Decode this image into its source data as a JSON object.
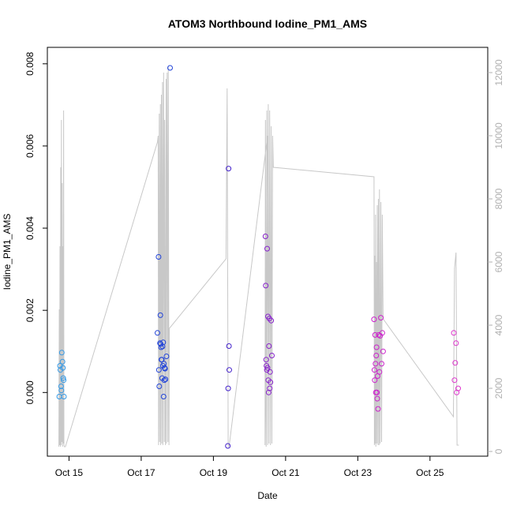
{
  "chart_data": {
    "type": "scatter",
    "title": "ATOM3 Northbound Iodine_PM1_AMS",
    "xlabel": "Date",
    "ylabel": "Iodine_PM1_AMS",
    "x_unit": "day of October (fractional)",
    "xlim": [
      14.4,
      26.6
    ],
    "ylim": [
      -0.00155,
      0.0084
    ],
    "y2lim": [
      -150,
      12800
    ],
    "x_ticks": [
      {
        "value": 15,
        "label": "Oct 15"
      },
      {
        "value": 17,
        "label": "Oct 17"
      },
      {
        "value": 19,
        "label": "Oct 19"
      },
      {
        "value": 21,
        "label": "Oct 21"
      },
      {
        "value": 23,
        "label": "Oct 23"
      },
      {
        "value": 25,
        "label": "Oct 25"
      }
    ],
    "y_ticks": [
      {
        "value": 0,
        "label": "0.000"
      },
      {
        "value": 0.002,
        "label": "0.002"
      },
      {
        "value": 0.004,
        "label": "0.004"
      },
      {
        "value": 0.006,
        "label": "0.006"
      },
      {
        "value": 0.008,
        "label": "0.008"
      }
    ],
    "y2_ticks": [
      {
        "value": 0,
        "label": "0"
      },
      {
        "value": 2000,
        "label": "2000"
      },
      {
        "value": 4000,
        "label": "4000"
      },
      {
        "value": 6000,
        "label": "6000"
      },
      {
        "value": 8000,
        "label": "8000"
      },
      {
        "value": 10000,
        "label": "10000"
      },
      {
        "value": 12000,
        "label": "12000"
      }
    ],
    "colors": {
      "altitude_line": "#c8c8c8",
      "axis": "#000000",
      "right_axis": "#b0b0b0"
    },
    "altitude_series": {
      "name": "altitude",
      "x": [
        14.72,
        14.73,
        14.74,
        14.75,
        14.76,
        14.77,
        14.78,
        14.79,
        14.8,
        14.81,
        14.82,
        14.83,
        14.84,
        14.85,
        14.86,
        14.87,
        14.88,
        14.89,
        14.9,
        17.45,
        17.47,
        17.48,
        17.5,
        17.51,
        17.53,
        17.54,
        17.56,
        17.57,
        17.59,
        17.6,
        17.62,
        17.64,
        17.65,
        17.67,
        17.69,
        17.7,
        17.72,
        17.74,
        17.75,
        17.77,
        17.78,
        19.35,
        19.38,
        19.41,
        19.42,
        19.44,
        20.5,
        20.43,
        20.44,
        20.46,
        20.48,
        20.5,
        20.52,
        20.54,
        20.56,
        20.58,
        20.6,
        20.62,
        20.64,
        20.66,
        23.45,
        23.46,
        23.47,
        23.48,
        23.49,
        23.5,
        23.52,
        23.53,
        23.54,
        23.56,
        23.57,
        23.59,
        23.6,
        23.62,
        23.64,
        23.66,
        23.68,
        23.7,
        25.65,
        25.68,
        25.72,
        25.75,
        25.78,
        25.8
      ],
      "y": [
        150,
        4500,
        200,
        6500,
        150,
        9000,
        200,
        10500,
        300,
        8500,
        150,
        6500,
        250,
        10800,
        200,
        150,
        150,
        150,
        150,
        9800,
        10000,
        200,
        10700,
        300,
        11000,
        200,
        11300,
        250,
        11700,
        200,
        12000,
        300,
        10500,
        200,
        11800,
        250,
        12000,
        300,
        12200,
        200,
        3900,
        6100,
        11500,
        200,
        150,
        200,
        10000,
        200,
        10500,
        150,
        10800,
        200,
        11000,
        250,
        10800,
        200,
        10300,
        250,
        10000,
        9000,
        8700,
        200,
        6200,
        250,
        7500,
        150,
        6000,
        250,
        7800,
        200,
        8000,
        200,
        8300,
        250,
        7900,
        300,
        7500,
        4200,
        1100,
        5800,
        6300,
        200,
        200,
        200
      ]
    },
    "points": [
      {
        "x": 14.73,
        "y": -0.0001,
        "color": "#3399e6"
      },
      {
        "x": 14.75,
        "y": 0.00065,
        "color": "#3399e6"
      },
      {
        "x": 14.76,
        "y": 0.00055,
        "color": "#3399e6"
      },
      {
        "x": 14.78,
        "y": 0.00015,
        "color": "#3399e6"
      },
      {
        "x": 14.79,
        "y": 5e-05,
        "color": "#3399e6"
      },
      {
        "x": 14.8,
        "y": 0.00097,
        "color": "#3399e6"
      },
      {
        "x": 14.82,
        "y": 0.00075,
        "color": "#3399e6"
      },
      {
        "x": 14.83,
        "y": 0.0006,
        "color": "#3399e6"
      },
      {
        "x": 14.84,
        "y": 0.00035,
        "color": "#3399e6"
      },
      {
        "x": 14.85,
        "y": 0.0003,
        "color": "#3399e6"
      },
      {
        "x": 14.86,
        "y": -0.0001,
        "color": "#3399e6"
      },
      {
        "x": 17.45,
        "y": 0.00145,
        "color": "#2244d8"
      },
      {
        "x": 17.48,
        "y": 0.0033,
        "color": "#2244d8"
      },
      {
        "x": 17.49,
        "y": 0.00055,
        "color": "#2244d8"
      },
      {
        "x": 17.5,
        "y": 0.00015,
        "color": "#2244d8"
      },
      {
        "x": 17.52,
        "y": 0.0012,
        "color": "#2244d8"
      },
      {
        "x": 17.53,
        "y": 0.00188,
        "color": "#2244d8"
      },
      {
        "x": 17.54,
        "y": 0.00118,
        "color": "#2244d8"
      },
      {
        "x": 17.55,
        "y": 0.0011,
        "color": "#2244d8"
      },
      {
        "x": 17.56,
        "y": 0.0008,
        "color": "#2244d8"
      },
      {
        "x": 17.57,
        "y": 0.0008,
        "color": "#2244d8"
      },
      {
        "x": 17.58,
        "y": 0.00035,
        "color": "#2244d8"
      },
      {
        "x": 17.59,
        "y": 0.00112,
        "color": "#2244d8"
      },
      {
        "x": 17.6,
        "y": 0.00065,
        "color": "#2244d8"
      },
      {
        "x": 17.61,
        "y": 0.00122,
        "color": "#2244d8"
      },
      {
        "x": 17.62,
        "y": -0.0001,
        "color": "#2244d8"
      },
      {
        "x": 17.63,
        "y": 0.0007,
        "color": "#2244d8"
      },
      {
        "x": 17.64,
        "y": 0.0003,
        "color": "#2244d8"
      },
      {
        "x": 17.65,
        "y": 0.0006,
        "color": "#2244d8"
      },
      {
        "x": 17.66,
        "y": 0.00058,
        "color": "#2244d8"
      },
      {
        "x": 17.67,
        "y": 0.00032,
        "color": "#2244d8"
      },
      {
        "x": 17.7,
        "y": 0.00088,
        "color": "#2244d8"
      },
      {
        "x": 17.8,
        "y": 0.0079,
        "color": "#2244d8"
      },
      {
        "x": 19.4,
        "y": -0.0013,
        "color": "#4422cc"
      },
      {
        "x": 19.41,
        "y": 0.0001,
        "color": "#4422cc"
      },
      {
        "x": 19.42,
        "y": 0.00545,
        "color": "#4422cc"
      },
      {
        "x": 19.43,
        "y": 0.00113,
        "color": "#4422cc"
      },
      {
        "x": 19.44,
        "y": 0.00055,
        "color": "#4422cc"
      },
      {
        "x": 20.44,
        "y": 0.0038,
        "color": "#8822cc"
      },
      {
        "x": 20.45,
        "y": 0.0026,
        "color": "#8822cc"
      },
      {
        "x": 20.46,
        "y": 0.0008,
        "color": "#8822cc"
      },
      {
        "x": 20.47,
        "y": 0.00065,
        "color": "#8822cc"
      },
      {
        "x": 20.48,
        "y": 0.00055,
        "color": "#8822cc"
      },
      {
        "x": 20.49,
        "y": 0.0035,
        "color": "#8822cc"
      },
      {
        "x": 20.5,
        "y": 0.0006,
        "color": "#8822cc"
      },
      {
        "x": 20.51,
        "y": 0.00185,
        "color": "#8822cc"
      },
      {
        "x": 20.52,
        "y": 0.0003,
        "color": "#8822cc"
      },
      {
        "x": 20.53,
        "y": 0.0,
        "color": "#8822cc"
      },
      {
        "x": 20.54,
        "y": 0.00113,
        "color": "#8822cc"
      },
      {
        "x": 20.55,
        "y": 0.0018,
        "color": "#8822cc"
      },
      {
        "x": 20.56,
        "y": 0.0001,
        "color": "#8822cc"
      },
      {
        "x": 20.57,
        "y": 0.0005,
        "color": "#8822cc"
      },
      {
        "x": 20.58,
        "y": 0.00025,
        "color": "#8822cc"
      },
      {
        "x": 20.6,
        "y": 0.00175,
        "color": "#8822cc"
      },
      {
        "x": 20.62,
        "y": 0.0009,
        "color": "#8822cc"
      },
      {
        "x": 23.45,
        "y": 0.00178,
        "color": "#cc22cc"
      },
      {
        "x": 23.46,
        "y": 0.00055,
        "color": "#cc22cc"
      },
      {
        "x": 23.47,
        "y": 0.0003,
        "color": "#cc22cc"
      },
      {
        "x": 23.48,
        "y": 0.0014,
        "color": "#cc22cc"
      },
      {
        "x": 23.49,
        "y": 0.0007,
        "color": "#cc22cc"
      },
      {
        "x": 23.5,
        "y": 0.0,
        "color": "#cc22cc"
      },
      {
        "x": 23.51,
        "y": 0.0009,
        "color": "#cc22cc"
      },
      {
        "x": 23.52,
        "y": 0.0011,
        "color": "#cc22cc"
      },
      {
        "x": 23.53,
        "y": 0.0,
        "color": "#cc22cc"
      },
      {
        "x": 23.54,
        "y": -0.00015,
        "color": "#cc22cc"
      },
      {
        "x": 23.55,
        "y": 0.0004,
        "color": "#cc22cc"
      },
      {
        "x": 23.56,
        "y": -0.0004,
        "color": "#cc22cc"
      },
      {
        "x": 23.58,
        "y": 0.0014,
        "color": "#cc22cc"
      },
      {
        "x": 23.6,
        "y": 0.0005,
        "color": "#cc22cc"
      },
      {
        "x": 23.62,
        "y": 0.00138,
        "color": "#cc22cc"
      },
      {
        "x": 23.64,
        "y": 0.00182,
        "color": "#cc22cc"
      },
      {
        "x": 23.66,
        "y": 0.0007,
        "color": "#cc22cc"
      },
      {
        "x": 23.68,
        "y": 0.00145,
        "color": "#cc22cc"
      },
      {
        "x": 23.7,
        "y": 0.001,
        "color": "#cc22cc"
      },
      {
        "x": 25.66,
        "y": 0.00145,
        "color": "#dd33cc"
      },
      {
        "x": 25.68,
        "y": 0.0003,
        "color": "#dd33cc"
      },
      {
        "x": 25.7,
        "y": 0.00072,
        "color": "#dd33cc"
      },
      {
        "x": 25.72,
        "y": 0.0012,
        "color": "#dd33cc"
      },
      {
        "x": 25.74,
        "y": 0.0,
        "color": "#dd33cc"
      },
      {
        "x": 25.78,
        "y": 0.0001,
        "color": "#dd33cc"
      }
    ]
  }
}
